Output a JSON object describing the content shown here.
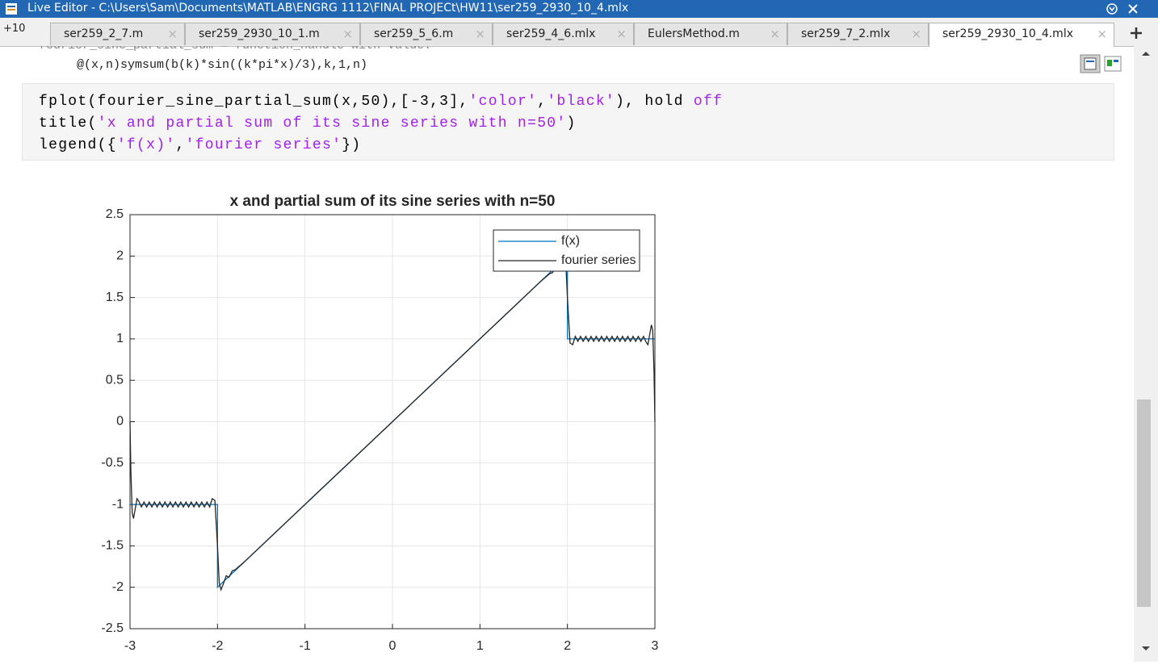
{
  "window": {
    "title": "Live Editor - C:\\Users\\Sam\\Documents\\MATLAB\\ENGRG 1112\\FINAL PROJECt\\HW11\\ser259_2930_10_4.mlx"
  },
  "tabs": {
    "more": "+10",
    "items": [
      "ser259_2_7.m",
      "ser259_2930_10_1.m",
      "ser259_5_6.m",
      "ser259_4_6.mlx",
      "EulersMethod.m",
      "ser259_7_2.mlx",
      "ser259_2930_10_4.mlx"
    ],
    "active": 6
  },
  "output": {
    "lines": [
      "fourier_sine_partial_sum = function_handle with value:",
      "@(x,n)symsum(b(k)*sin((k*pi*x)/3),k,1,n)"
    ]
  },
  "code": {
    "lines": [
      [
        "fplot(fourier_sine_partial_sum(x,50),[-3,3],",
        "'color'",
        ",",
        "'black'",
        "), hold ",
        "off"
      ],
      [
        "title(",
        "'x and partial sum of its sine series with n=50'",
        ")"
      ],
      [
        "legend({",
        "'f(x)'",
        ",",
        "'fourier series'",
        "})"
      ]
    ]
  },
  "chart_data": {
    "type": "line",
    "title": "x and partial sum of its sine series with n=50",
    "xlim": [
      -3,
      3
    ],
    "ylim": [
      -2.5,
      2.5
    ],
    "xticks": [
      -3,
      -2,
      -1,
      0,
      1,
      2,
      3
    ],
    "yticks": [
      -2.5,
      -2,
      -1.5,
      -1,
      -0.5,
      0,
      0.5,
      1,
      1.5,
      2,
      2.5
    ],
    "grid": true,
    "legend": "northeast",
    "series": [
      {
        "name": "f(x)",
        "color": "#0072bd",
        "x": [
          -3,
          -2,
          -2,
          2,
          2,
          3
        ],
        "values": [
          -1,
          -1,
          -2,
          2,
          1,
          1
        ]
      },
      {
        "name": "fourier series",
        "color": "#262626",
        "x": [
          -3,
          -2.99,
          -2.975,
          -2.96,
          -2.94,
          -2.92,
          -2.9,
          -2.87,
          -2.84,
          -2.81,
          -2.78,
          -2.75,
          -2.72,
          -2.69,
          -2.66,
          -2.63,
          -2.6,
          -2.57,
          -2.54,
          -2.51,
          -2.48,
          -2.45,
          -2.42,
          -2.39,
          -2.36,
          -2.33,
          -2.3,
          -2.27,
          -2.24,
          -2.21,
          -2.18,
          -2.15,
          -2.12,
          -2.09,
          -2.06,
          -2.03,
          -2,
          -1.98,
          -1.96,
          -1.93,
          -1.9,
          -1.87,
          -1.83,
          -1.8,
          -1.7,
          1.7,
          1.8,
          1.83,
          1.87,
          1.9,
          1.93,
          1.96,
          1.98,
          2,
          2.03,
          2.06,
          2.09,
          2.12,
          2.15,
          2.18,
          2.21,
          2.24,
          2.27,
          2.3,
          2.33,
          2.36,
          2.39,
          2.42,
          2.45,
          2.48,
          2.51,
          2.54,
          2.57,
          2.6,
          2.63,
          2.66,
          2.69,
          2.72,
          2.75,
          2.78,
          2.81,
          2.84,
          2.87,
          2.9,
          2.92,
          2.94,
          2.96,
          2.975,
          2.99,
          3
        ],
        "values": [
          0,
          -0.6,
          -1.1,
          -1.17,
          -1.05,
          -0.93,
          -0.96,
          -1.03,
          -0.97,
          -1.03,
          -0.97,
          -1.03,
          -0.97,
          -1.03,
          -0.97,
          -1.03,
          -0.97,
          -1.03,
          -0.97,
          -1.03,
          -0.97,
          -1.03,
          -0.97,
          -1.03,
          -0.97,
          -1.03,
          -0.97,
          -1.03,
          -0.97,
          -1.03,
          -0.97,
          -1.03,
          -0.97,
          -1.03,
          -0.93,
          -0.95,
          -1.5,
          -1.95,
          -2.03,
          -1.95,
          -1.86,
          -1.88,
          -1.8,
          -1.79,
          -1.7,
          1.7,
          1.79,
          1.8,
          1.88,
          1.86,
          1.95,
          2.03,
          1.95,
          1.5,
          0.95,
          0.93,
          1.03,
          0.97,
          1.03,
          0.97,
          1.03,
          0.97,
          1.03,
          0.97,
          1.03,
          0.97,
          1.03,
          0.97,
          1.03,
          0.97,
          1.03,
          0.97,
          1.03,
          0.97,
          1.03,
          0.97,
          1.03,
          0.97,
          1.03,
          0.97,
          1.03,
          0.97,
          1.03,
          0.96,
          0.93,
          1.05,
          1.17,
          1.1,
          0.6,
          0
        ]
      }
    ]
  }
}
